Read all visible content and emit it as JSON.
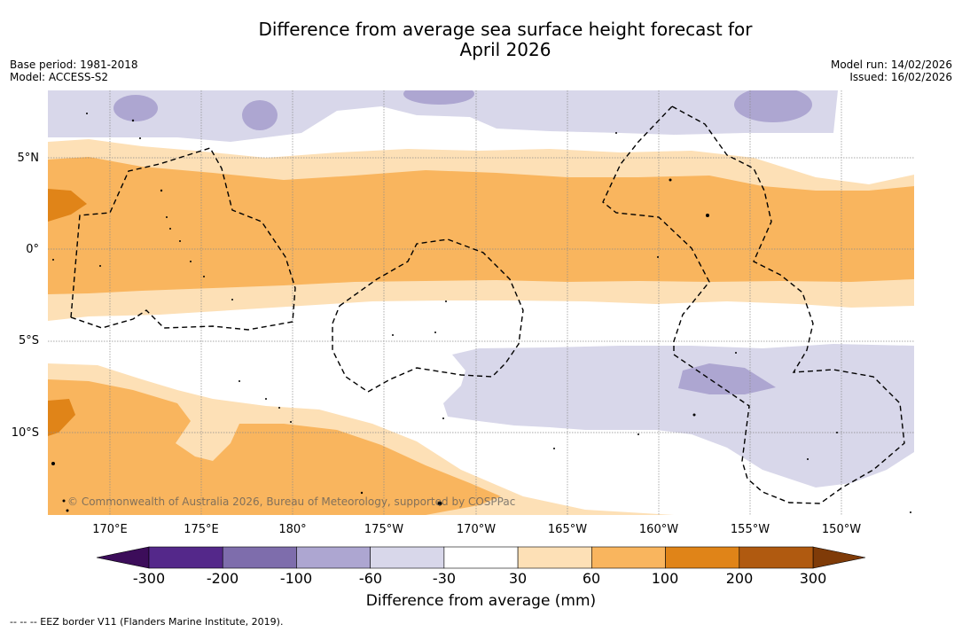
{
  "title_line1": "Difference from average sea surface height forecast for",
  "title_line2": "April 2026",
  "meta_left": {
    "base_period": "Base period: 1981-2018",
    "model": "Model: ACCESS-S2"
  },
  "meta_right": {
    "model_run": "Model run: 14/02/2026",
    "issued": "Issued: 16/02/2026"
  },
  "latitude_labels": [
    "5°N",
    "0°",
    "5°S",
    "10°S"
  ],
  "longitude_labels": [
    "170°E",
    "175°E",
    "180°",
    "175°W",
    "170°W",
    "165°W",
    "160°W",
    "155°W",
    "150°W"
  ],
  "colorbar": {
    "ticks": [
      "-300",
      "-200",
      "-100",
      "-60",
      "-30",
      "30",
      "60",
      "100",
      "200",
      "300"
    ],
    "colors": [
      "#3c0d5a",
      "#54288a",
      "#7e6dac",
      "#ada6d1",
      "#d8d7ea",
      "#ffffff",
      "#fde0b6",
      "#f9b55e",
      "#e08418",
      "#b05a10",
      "#7f3b08"
    ],
    "title": "Difference from average (mm)"
  },
  "copyright": "© Commonwealth of Australia 2026, Bureau of Meteorology, supported by COSPPac",
  "footnote": "--  --  -- EEZ border V11 (Flanders Marine Institute, 2019)."
}
